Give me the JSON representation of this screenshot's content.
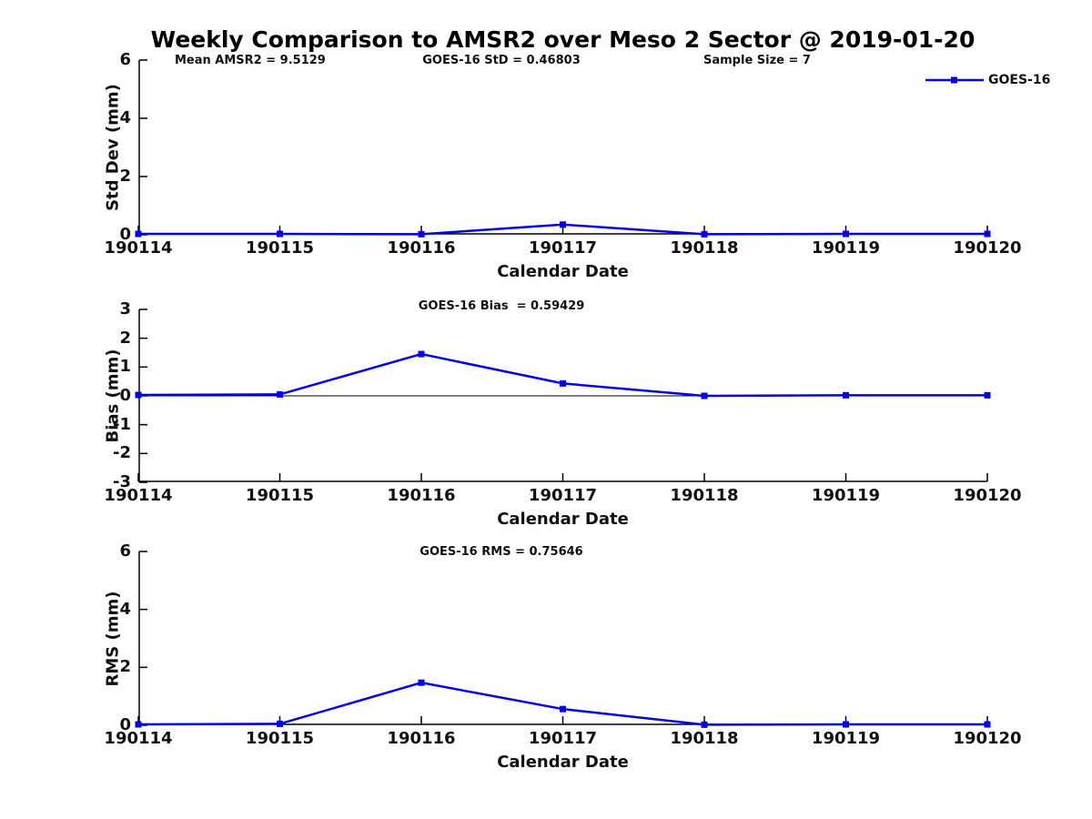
{
  "title": "Weekly Comparison to AMSR2 over Meso 2 Sector @ 2019-01-20",
  "colors": {
    "series": "#0000ee",
    "axis": "#000000",
    "text": "#111111"
  },
  "legend": {
    "label": "GOES-16"
  },
  "chart_data": {
    "type": "line",
    "marker": "square",
    "legend_entries": [
      "GOES-16"
    ],
    "legend_position": "top-right",
    "grid": false,
    "x": [
      "190114",
      "190115",
      "190116",
      "190117",
      "190118",
      "190119",
      "190120"
    ],
    "xlabel": "Calendar Date",
    "panels": [
      {
        "ylabel": "Std Dev (mm)",
        "ylim": [
          0,
          6
        ],
        "yticks": [
          0,
          2,
          4,
          6
        ],
        "zero_line": false,
        "series": [
          {
            "name": "GOES-16",
            "values": [
              0.03,
              0.03,
              0.02,
              0.35,
              0.02,
              0.03,
              0.03
            ]
          }
        ],
        "annotations": [
          "Mean AMSR2 = 9.5129",
          "GOES-16 StD = 0.46803",
          "Sample Size = 7"
        ]
      },
      {
        "ylabel": "Bias (mm)",
        "ylim": [
          -3,
          3
        ],
        "yticks": [
          3,
          2,
          1,
          0,
          -1,
          -2,
          -3
        ],
        "zero_line": true,
        "series": [
          {
            "name": "GOES-16",
            "values": [
              0.03,
              0.05,
              1.45,
              0.43,
              0.0,
              0.02,
              0.02
            ]
          }
        ],
        "annotations": [
          "GOES-16 Bias  = 0.59429"
        ]
      },
      {
        "ylabel": "RMS (mm)",
        "ylim": [
          0,
          6
        ],
        "yticks": [
          0,
          2,
          4,
          6
        ],
        "zero_line": false,
        "series": [
          {
            "name": "GOES-16",
            "values": [
              0.03,
              0.05,
              1.47,
              0.56,
              0.02,
              0.03,
              0.03
            ]
          }
        ],
        "annotations": [
          "GOES-16 RMS = 0.75646"
        ]
      }
    ]
  }
}
